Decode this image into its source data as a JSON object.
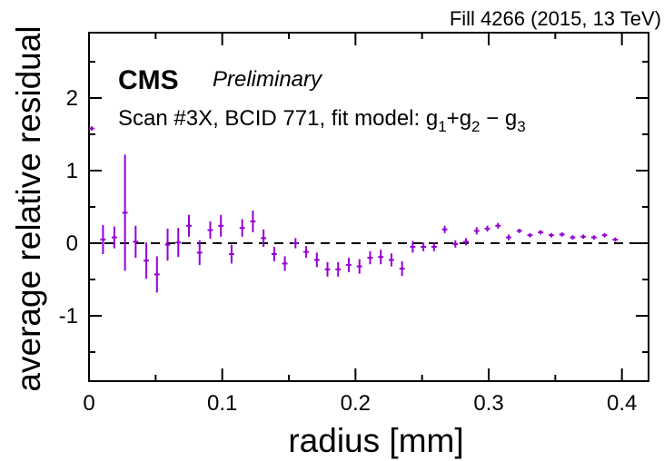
{
  "header": {
    "fill_info": "Fill 4266 (2015, 13 TeV)"
  },
  "labels": {
    "experiment": "CMS",
    "status": "Preliminary",
    "scan_text": "Scan #3X, BCID 771, fit model: ",
    "fit_model": {
      "g1": "g",
      "g1_sub": "1",
      "plus": "+",
      "g2": "g",
      "g2_sub": "2",
      "minus": " − ",
      "g3": "g",
      "g3_sub": "3"
    }
  },
  "chart_data": {
    "type": "scatter",
    "xlabel": "radius [mm]",
    "ylabel": "average relative residual",
    "xlim": [
      0,
      0.42
    ],
    "ylim": [
      -1.9,
      2.9
    ],
    "xticks": [
      "0",
      "0.1",
      "0.2",
      "0.3",
      "0.4"
    ],
    "yticks": [
      "-1",
      "0",
      "1",
      "2"
    ],
    "xtick_values": [
      0,
      0.1,
      0.2,
      0.3,
      0.4
    ],
    "ytick_values": [
      -1,
      0,
      1,
      2
    ],
    "reference_line": 0,
    "reference_line_style": "dashed",
    "marker_color": "#9400d3",
    "series": [
      {
        "points": [
          {
            "x": 0.002,
            "y": 1.58,
            "xerr": 0.002,
            "yerr": 0.03
          },
          {
            "x": 0.0105,
            "y": 0.05,
            "xerr": 0.002,
            "yerr": 0.2
          },
          {
            "x": 0.019,
            "y": 0.08,
            "xerr": 0.002,
            "yerr": 0.15
          },
          {
            "x": 0.027,
            "y": 0.42,
            "xerr": 0.002,
            "yerr": 0.8
          },
          {
            "x": 0.035,
            "y": 0.02,
            "xerr": 0.002,
            "yerr": 0.22
          },
          {
            "x": 0.043,
            "y": -0.24,
            "xerr": 0.002,
            "yerr": 0.25
          },
          {
            "x": 0.051,
            "y": -0.43,
            "xerr": 0.002,
            "yerr": 0.25
          },
          {
            "x": 0.059,
            "y": -0.02,
            "xerr": 0.002,
            "yerr": 0.22
          },
          {
            "x": 0.067,
            "y": 0.01,
            "xerr": 0.002,
            "yerr": 0.2
          },
          {
            "x": 0.075,
            "y": 0.24,
            "xerr": 0.002,
            "yerr": 0.15
          },
          {
            "x": 0.083,
            "y": -0.13,
            "xerr": 0.002,
            "yerr": 0.17
          },
          {
            "x": 0.091,
            "y": 0.18,
            "xerr": 0.002,
            "yerr": 0.12
          },
          {
            "x": 0.099,
            "y": 0.24,
            "xerr": 0.002,
            "yerr": 0.15
          },
          {
            "x": 0.107,
            "y": -0.15,
            "xerr": 0.002,
            "yerr": 0.13
          },
          {
            "x": 0.115,
            "y": 0.21,
            "xerr": 0.002,
            "yerr": 0.12
          },
          {
            "x": 0.123,
            "y": 0.3,
            "xerr": 0.002,
            "yerr": 0.15
          },
          {
            "x": 0.131,
            "y": 0.07,
            "xerr": 0.002,
            "yerr": 0.12
          },
          {
            "x": 0.139,
            "y": -0.15,
            "xerr": 0.002,
            "yerr": 0.1
          },
          {
            "x": 0.147,
            "y": -0.28,
            "xerr": 0.002,
            "yerr": 0.1
          },
          {
            "x": 0.155,
            "y": 0.0,
            "xerr": 0.002,
            "yerr": 0.07
          },
          {
            "x": 0.163,
            "y": -0.12,
            "xerr": 0.002,
            "yerr": 0.08
          },
          {
            "x": 0.171,
            "y": -0.23,
            "xerr": 0.002,
            "yerr": 0.1
          },
          {
            "x": 0.179,
            "y": -0.36,
            "xerr": 0.002,
            "yerr": 0.1
          },
          {
            "x": 0.187,
            "y": -0.36,
            "xerr": 0.002,
            "yerr": 0.1
          },
          {
            "x": 0.195,
            "y": -0.3,
            "xerr": 0.002,
            "yerr": 0.1
          },
          {
            "x": 0.203,
            "y": -0.32,
            "xerr": 0.002,
            "yerr": 0.1
          },
          {
            "x": 0.211,
            "y": -0.2,
            "xerr": 0.002,
            "yerr": 0.09
          },
          {
            "x": 0.219,
            "y": -0.19,
            "xerr": 0.002,
            "yerr": 0.1
          },
          {
            "x": 0.227,
            "y": -0.23,
            "xerr": 0.002,
            "yerr": 0.09
          },
          {
            "x": 0.235,
            "y": -0.35,
            "xerr": 0.002,
            "yerr": 0.1
          },
          {
            "x": 0.243,
            "y": -0.05,
            "xerr": 0.002,
            "yerr": 0.08
          },
          {
            "x": 0.251,
            "y": -0.05,
            "xerr": 0.002,
            "yerr": 0.06
          },
          {
            "x": 0.259,
            "y": -0.05,
            "xerr": 0.002,
            "yerr": 0.06
          },
          {
            "x": 0.267,
            "y": 0.19,
            "xerr": 0.002,
            "yerr": 0.05
          },
          {
            "x": 0.275,
            "y": -0.01,
            "xerr": 0.002,
            "yerr": 0.05
          },
          {
            "x": 0.283,
            "y": 0.02,
            "xerr": 0.002,
            "yerr": 0.05
          },
          {
            "x": 0.291,
            "y": 0.17,
            "xerr": 0.002,
            "yerr": 0.05
          },
          {
            "x": 0.299,
            "y": 0.2,
            "xerr": 0.002,
            "yerr": 0.04
          },
          {
            "x": 0.307,
            "y": 0.24,
            "xerr": 0.002,
            "yerr": 0.04
          },
          {
            "x": 0.315,
            "y": 0.08,
            "xerr": 0.002,
            "yerr": 0.04
          },
          {
            "x": 0.323,
            "y": 0.17,
            "xerr": 0.002,
            "yerr": 0.03
          },
          {
            "x": 0.331,
            "y": 0.11,
            "xerr": 0.002,
            "yerr": 0.03
          },
          {
            "x": 0.339,
            "y": 0.15,
            "xerr": 0.002,
            "yerr": 0.03
          },
          {
            "x": 0.347,
            "y": 0.11,
            "xerr": 0.002,
            "yerr": 0.03
          },
          {
            "x": 0.355,
            "y": 0.12,
            "xerr": 0.002,
            "yerr": 0.03
          },
          {
            "x": 0.363,
            "y": 0.08,
            "xerr": 0.002,
            "yerr": 0.03
          },
          {
            "x": 0.371,
            "y": 0.09,
            "xerr": 0.002,
            "yerr": 0.03
          },
          {
            "x": 0.379,
            "y": 0.08,
            "xerr": 0.002,
            "yerr": 0.03
          },
          {
            "x": 0.387,
            "y": 0.11,
            "xerr": 0.002,
            "yerr": 0.03
          },
          {
            "x": 0.395,
            "y": 0.05,
            "xerr": 0.002,
            "yerr": 0.03
          }
        ]
      }
    ]
  }
}
